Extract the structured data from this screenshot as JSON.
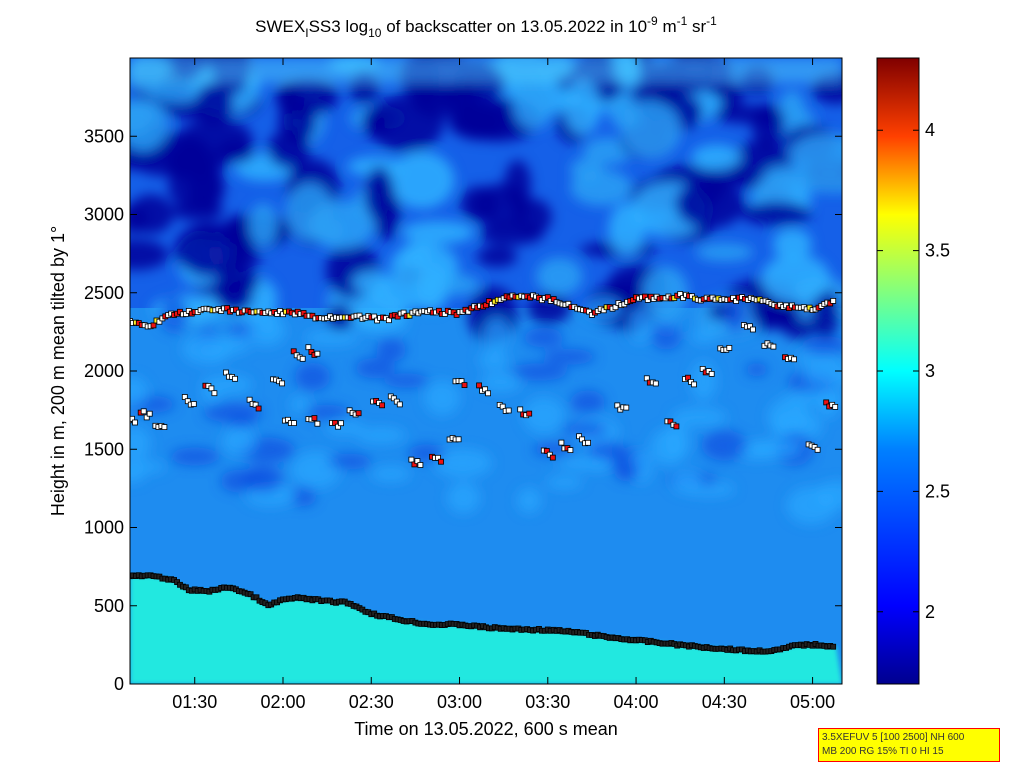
{
  "chart_data": {
    "type": "heatmap",
    "title": {
      "text_prefix": "SWEX",
      "text_sub1": "I",
      "text_mid": "SS3 log",
      "text_sub2": "10",
      "text_after": " of backscatter on 13.05.2022 in 10",
      "text_sup1": "-9",
      "text_unit1": " m",
      "text_sup2": "-1",
      "text_unit2": " sr",
      "text_sup3": "-1"
    },
    "xlabel": "Time on 13.05.2022, 600 s mean",
    "ylabel": "Height in m, 200 m mean tilted by 1°",
    "xlim": [
      "01:08",
      "05:10"
    ],
    "ylim": [
      0,
      4000
    ],
    "x_ticks": [
      "01:30",
      "02:00",
      "02:30",
      "03:00",
      "03:30",
      "04:00",
      "04:30",
      "05:00"
    ],
    "y_ticks": [
      0,
      500,
      1000,
      1500,
      2000,
      2500,
      3000,
      3500
    ],
    "colorbar": {
      "range": [
        1.7,
        4.3
      ],
      "ticks": [
        "2",
        "2.5",
        "3",
        "3.5",
        "4"
      ],
      "tick_values": [
        2,
        2.5,
        3,
        3.5,
        4
      ]
    },
    "layers": {
      "surface_layer_top": [
        [
          "01:08",
          690
        ],
        [
          "01:15",
          690
        ],
        [
          "01:22",
          670
        ],
        [
          "01:28",
          600
        ],
        [
          "01:35",
          595
        ],
        [
          "01:42",
          620
        ],
        [
          "01:50",
          560
        ],
        [
          "01:55",
          500
        ],
        [
          "02:00",
          540
        ],
        [
          "02:06",
          550
        ],
        [
          "02:14",
          530
        ],
        [
          "02:22",
          520
        ],
        [
          "02:30",
          450
        ],
        [
          "02:40",
          410
        ],
        [
          "02:50",
          380
        ],
        [
          "03:00",
          380
        ],
        [
          "03:10",
          360
        ],
        [
          "03:20",
          350
        ],
        [
          "03:30",
          345
        ],
        [
          "03:40",
          330
        ],
        [
          "03:50",
          300
        ],
        [
          "04:00",
          280
        ],
        [
          "04:10",
          260
        ],
        [
          "04:20",
          240
        ],
        [
          "04:30",
          225
        ],
        [
          "04:40",
          210
        ],
        [
          "04:48",
          215
        ],
        [
          "04:55",
          250
        ],
        [
          "05:02",
          250
        ],
        [
          "05:08",
          240
        ]
      ],
      "cloud_top": [
        [
          "01:08",
          2310
        ],
        [
          "01:15",
          2290
        ],
        [
          "01:22",
          2360
        ],
        [
          "01:30",
          2380
        ],
        [
          "01:37",
          2400
        ],
        [
          "01:45",
          2380
        ],
        [
          "02:05",
          2370
        ],
        [
          "02:12",
          2330
        ],
        [
          "02:20",
          2350
        ],
        [
          "02:28",
          2340
        ],
        [
          "02:35",
          2330
        ],
        [
          "02:40",
          2360
        ],
        [
          "02:52",
          2380
        ],
        [
          "03:00",
          2370
        ],
        [
          "03:08",
          2420
        ],
        [
          "03:15",
          2470
        ],
        [
          "03:22",
          2480
        ],
        [
          "03:30",
          2460
        ],
        [
          "03:38",
          2420
        ],
        [
          "03:45",
          2370
        ],
        [
          "03:52",
          2410
        ],
        [
          "04:00",
          2460
        ],
        [
          "04:08",
          2470
        ],
        [
          "04:15",
          2480
        ],
        [
          "04:22",
          2460
        ],
        [
          "04:40",
          2460
        ],
        [
          "04:50",
          2410
        ],
        [
          "05:00",
          2400
        ],
        [
          "05:08",
          2450
        ]
      ],
      "mid_layer_points": [
        [
          "01:08",
          1700
        ],
        [
          "01:13",
          1740
        ],
        [
          "01:18",
          1660
        ],
        [
          "01:28",
          1820
        ],
        [
          "01:35",
          1900
        ],
        [
          "01:42",
          1980
        ],
        [
          "01:50",
          1800
        ],
        [
          "01:58",
          1940
        ],
        [
          "02:05",
          2110
        ],
        [
          "02:10",
          2140
        ],
        [
          "02:02",
          1700
        ],
        [
          "02:10",
          1700
        ],
        [
          "02:18",
          1680
        ],
        [
          "02:24",
          1750
        ],
        [
          "02:32",
          1800
        ],
        [
          "02:38",
          1830
        ],
        [
          "02:45",
          1430
        ],
        [
          "02:52",
          1450
        ],
        [
          "02:58",
          1580
        ],
        [
          "03:00",
          1950
        ],
        [
          "03:08",
          1900
        ],
        [
          "03:15",
          1770
        ],
        [
          "03:22",
          1750
        ],
        [
          "03:30",
          1480
        ],
        [
          "03:36",
          1530
        ],
        [
          "03:42",
          1570
        ],
        [
          "03:55",
          1780
        ],
        [
          "04:05",
          1950
        ],
        [
          "04:12",
          1680
        ],
        [
          "04:18",
          1950
        ],
        [
          "04:24",
          2000
        ],
        [
          "04:30",
          2160
        ],
        [
          "04:38",
          2300
        ],
        [
          "04:45",
          2170
        ],
        [
          "04:52",
          2090
        ],
        [
          "05:00",
          1520
        ],
        [
          "05:06",
          1800
        ]
      ]
    }
  },
  "info_box": {
    "line1": "3.5XEFUV 5 [100 2500] NH 600",
    "line2": "MB 200 RG 15% TI 0 HI 15"
  },
  "colors": {
    "colormap": [
      "#00008f",
      "#0000ff",
      "#0080ff",
      "#00ffff",
      "#80ff80",
      "#ffff00",
      "#ff8000",
      "#ff0000",
      "#800000"
    ],
    "marker_red": "#ee1111",
    "marker_white": "#ffffff",
    "marker_yellow": "#ffee22"
  }
}
